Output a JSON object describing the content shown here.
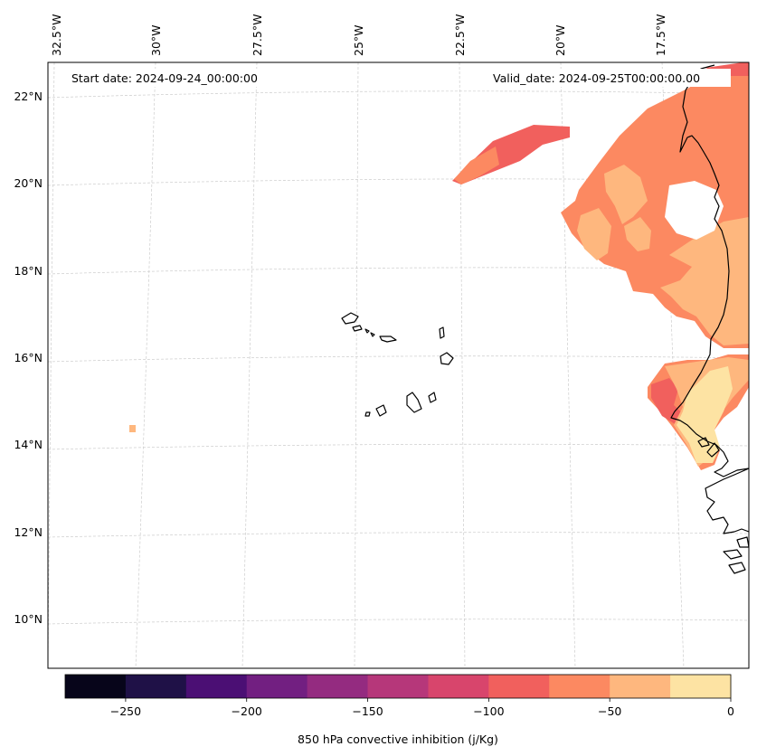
{
  "map": {
    "start_date_label": "Start date: 2024-09-24_00:00:00",
    "valid_date_label": "Valid_date: 2024-09-25T00:00:00.00",
    "lon_labels": [
      "32.5°W",
      "30°W",
      "27.5°W",
      "25°W",
      "22.5°W",
      "20°W",
      "17.5°W"
    ],
    "lat_labels": [
      "22°N",
      "20°N",
      "18°N",
      "16°N",
      "14°N",
      "12°N",
      "10°N"
    ],
    "colors": {
      "gridline": "#cccccc",
      "coast": "#000000",
      "frame": "#000000"
    }
  },
  "colorbar": {
    "label": "850 hPa convective inhibition (j/Kg)",
    "ticks": [
      "−250",
      "−200",
      "−150",
      "−100",
      "−50",
      "0"
    ],
    "colors": [
      "#07051a",
      "#1f1147",
      "#4b0f74",
      "#721f81",
      "#942b80",
      "#b6377a",
      "#d8456c",
      "#f1605d",
      "#fc8961",
      "#feb77e",
      "#fde3a3"
    ]
  }
}
